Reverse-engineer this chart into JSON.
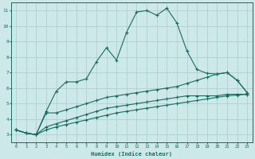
{
  "xlabel": "Humidex (Indice chaleur)",
  "bg_color": "#cce8e8",
  "grid_color": "#aacccc",
  "line_color": "#1a6b60",
  "xlim": [
    -0.5,
    23.5
  ],
  "ylim": [
    2.5,
    11.5
  ],
  "xticks": [
    0,
    1,
    2,
    3,
    4,
    5,
    6,
    7,
    8,
    9,
    10,
    11,
    12,
    13,
    14,
    15,
    16,
    17,
    18,
    19,
    20,
    21,
    22,
    23
  ],
  "yticks": [
    3,
    4,
    5,
    6,
    7,
    8,
    9,
    10,
    11
  ],
  "line1_x": [
    0,
    1,
    2,
    3,
    4,
    5,
    6,
    7,
    8,
    9,
    10,
    11,
    12,
    13,
    14,
    15,
    16,
    17,
    18,
    19,
    20,
    21,
    22,
    23
  ],
  "line1_y": [
    3.3,
    3.1,
    3.0,
    4.5,
    5.8,
    6.4,
    6.4,
    6.6,
    7.7,
    8.6,
    7.8,
    9.6,
    10.9,
    11.0,
    10.7,
    11.15,
    10.2,
    8.4,
    7.2,
    6.95,
    6.9,
    7.0,
    6.5,
    5.7
  ],
  "line2_x": [
    0,
    1,
    2,
    3,
    4,
    5,
    6,
    7,
    8,
    9,
    10,
    11,
    12,
    13,
    14,
    15,
    16,
    17,
    18,
    19,
    20,
    21,
    22,
    23
  ],
  "line2_y": [
    3.3,
    3.1,
    3.0,
    4.4,
    4.4,
    4.6,
    4.8,
    5.0,
    5.2,
    5.4,
    5.5,
    5.6,
    5.7,
    5.8,
    5.9,
    6.0,
    6.1,
    6.3,
    6.5,
    6.7,
    6.9,
    7.0,
    6.5,
    5.7
  ],
  "line3_x": [
    0,
    1,
    2,
    3,
    4,
    5,
    6,
    7,
    8,
    9,
    10,
    11,
    12,
    13,
    14,
    15,
    16,
    17,
    18,
    19,
    20,
    21,
    22,
    23
  ],
  "line3_y": [
    3.3,
    3.1,
    3.0,
    3.5,
    3.7,
    3.9,
    4.1,
    4.3,
    4.5,
    4.7,
    4.8,
    4.9,
    5.0,
    5.1,
    5.2,
    5.3,
    5.4,
    5.5,
    5.5,
    5.5,
    5.5,
    5.6,
    5.6,
    5.6
  ],
  "line4_x": [
    0,
    1,
    2,
    3,
    4,
    5,
    6,
    7,
    8,
    9,
    10,
    11,
    12,
    13,
    14,
    15,
    16,
    17,
    18,
    19,
    20,
    21,
    22,
    23
  ],
  "line4_y": [
    3.3,
    3.1,
    3.0,
    3.3,
    3.5,
    3.65,
    3.8,
    3.95,
    4.1,
    4.25,
    4.4,
    4.5,
    4.6,
    4.7,
    4.8,
    4.9,
    5.0,
    5.1,
    5.2,
    5.3,
    5.4,
    5.5,
    5.55,
    5.6
  ]
}
